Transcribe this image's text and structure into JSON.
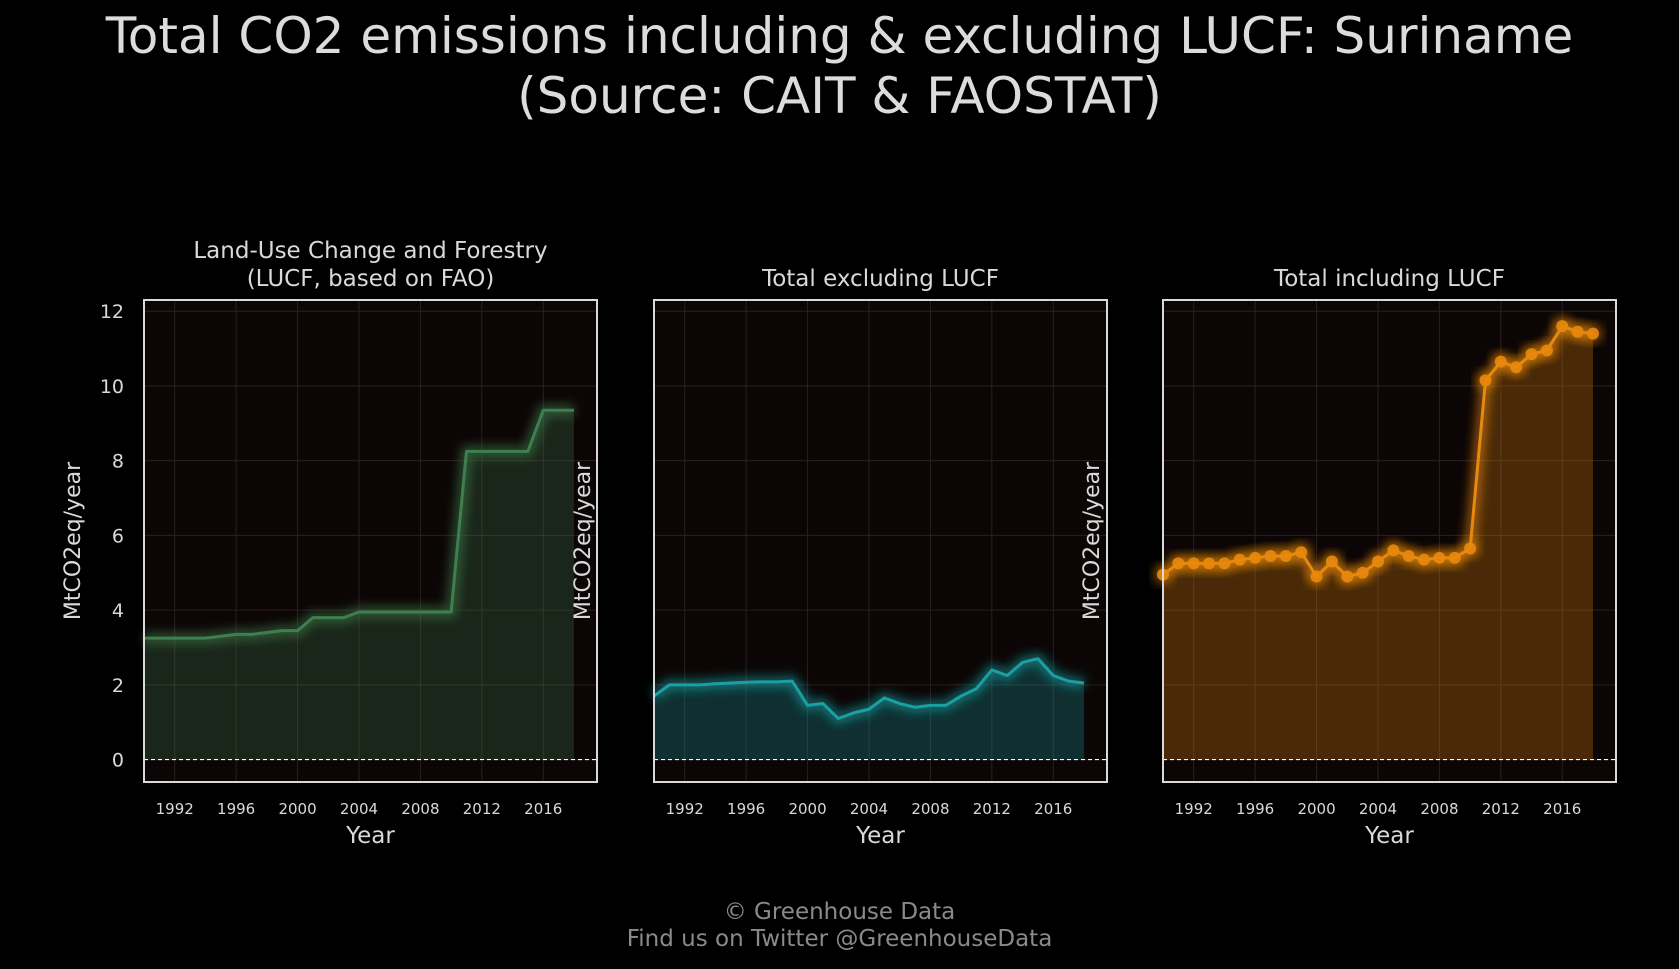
{
  "title": {
    "line1": "Total CO2 emissions including & excluding LUCF: Suriname",
    "line2": "(Source: CAIT & FAOSTAT)"
  },
  "footer": {
    "line1": "© Greenhouse Data",
    "line2": "Find us on Twitter @GreenhouseData"
  },
  "colors": {
    "background": "#000000",
    "panel_background": "#0c0505",
    "frame": "#d9d9d9",
    "text": "#d9d9d9",
    "lucf": "#3f7f4f",
    "excl": "#1a9fa3",
    "incl": "#e8890e"
  },
  "chart_data": [
    {
      "type": "area",
      "title": "Land-Use Change and Forestry\n(LUCF, based on FAO)",
      "xlabel": "Year",
      "ylabel": "MtCO2eq/year",
      "color": "#3f7f4f",
      "markers": false,
      "x": [
        1990,
        1991,
        1992,
        1993,
        1994,
        1995,
        1996,
        1997,
        1998,
        1999,
        2000,
        2001,
        2002,
        2003,
        2004,
        2005,
        2006,
        2007,
        2008,
        2009,
        2010,
        2011,
        2012,
        2013,
        2014,
        2015,
        2016,
        2017,
        2018
      ],
      "values": [
        3.25,
        3.25,
        3.25,
        3.25,
        3.25,
        3.3,
        3.35,
        3.35,
        3.4,
        3.45,
        3.45,
        3.8,
        3.8,
        3.8,
        3.95,
        3.95,
        3.95,
        3.95,
        3.95,
        3.95,
        3.95,
        8.25,
        8.25,
        8.25,
        8.25,
        8.25,
        9.35,
        9.35,
        9.35
      ],
      "xlim": [
        1990,
        2019.5
      ],
      "ylim": [
        -0.6,
        12.3
      ],
      "xticks": [
        "1992",
        "1996",
        "2000",
        "2004",
        "2008",
        "2012",
        "2016"
      ],
      "yticks": [
        "0",
        "2",
        "4",
        "6",
        "8",
        "10",
        "12"
      ],
      "reference_line": 0,
      "grid": true
    },
    {
      "type": "area",
      "title": "Total excluding LUCF",
      "xlabel": "Year",
      "ylabel": "MtCO2eq/year",
      "color": "#1a9fa3",
      "markers": false,
      "x": [
        1990,
        1991,
        1992,
        1993,
        1994,
        1995,
        1996,
        1997,
        1998,
        1999,
        2000,
        2001,
        2002,
        2003,
        2004,
        2005,
        2006,
        2007,
        2008,
        2009,
        2010,
        2011,
        2012,
        2013,
        2014,
        2015,
        2016,
        2017,
        2018
      ],
      "values": [
        1.7,
        2.0,
        2.0,
        2.0,
        2.03,
        2.05,
        2.07,
        2.08,
        2.08,
        2.1,
        1.45,
        1.5,
        1.1,
        1.25,
        1.35,
        1.65,
        1.5,
        1.4,
        1.45,
        1.45,
        1.7,
        1.9,
        2.4,
        2.25,
        2.6,
        2.7,
        2.25,
        2.1,
        2.05
      ],
      "xlim": [
        1990,
        2019.5
      ],
      "ylim": [
        -0.6,
        12.3
      ],
      "xticks": [
        "1992",
        "1996",
        "2000",
        "2004",
        "2008",
        "2012",
        "2016"
      ],
      "yticks": [],
      "reference_line": 0,
      "grid": true
    },
    {
      "type": "area",
      "title": "Total including LUCF",
      "xlabel": "Year",
      "ylabel": "MtCO2eq/year",
      "color": "#e8890e",
      "markers": true,
      "x": [
        1990,
        1991,
        1992,
        1993,
        1994,
        1995,
        1996,
        1997,
        1998,
        1999,
        2000,
        2001,
        2002,
        2003,
        2004,
        2005,
        2006,
        2007,
        2008,
        2009,
        2010,
        2011,
        2012,
        2013,
        2014,
        2015,
        2016,
        2017,
        2018
      ],
      "values": [
        4.95,
        5.25,
        5.25,
        5.25,
        5.25,
        5.35,
        5.4,
        5.45,
        5.45,
        5.55,
        4.9,
        5.3,
        4.9,
        5.0,
        5.3,
        5.6,
        5.45,
        5.35,
        5.4,
        5.4,
        5.65,
        10.15,
        10.65,
        10.5,
        10.85,
        10.95,
        11.6,
        11.45,
        11.4
      ],
      "xlim": [
        1990,
        2019.5
      ],
      "ylim": [
        -0.6,
        12.3
      ],
      "xticks": [
        "1992",
        "1996",
        "2000",
        "2004",
        "2008",
        "2012",
        "2016"
      ],
      "yticks": [],
      "reference_line": 0,
      "grid": true
    }
  ]
}
